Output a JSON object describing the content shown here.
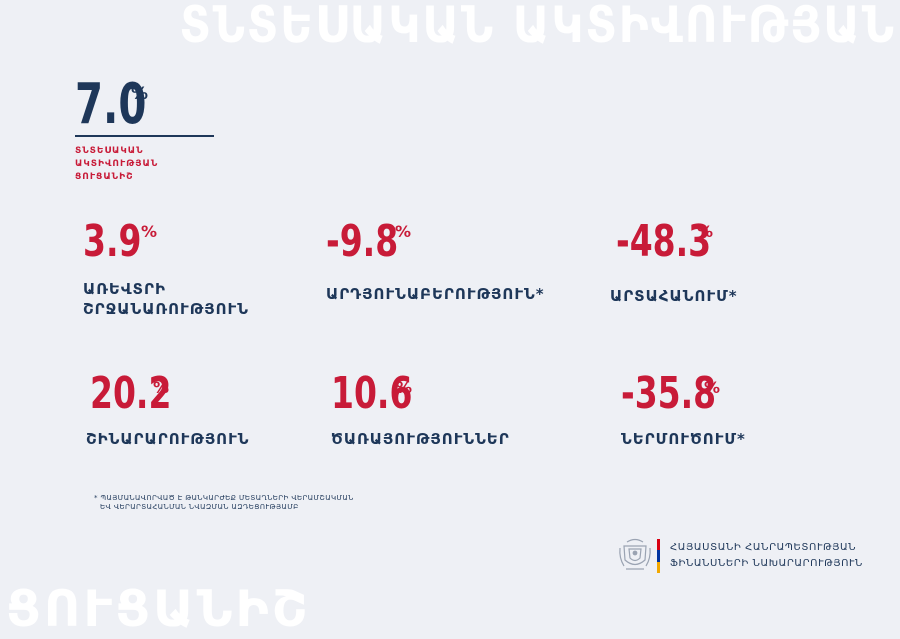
{
  "watermark_top": "ՏՆՏԵՍԱԿԱՆ ԱԿՏԻՎՈՒԹՅԱՆ",
  "watermark_bottom": "ՑՈՒՑԱՆԻՇ",
  "main": {
    "value": "7.0",
    "unit": "%",
    "label_line1": "ՏՆՏԵՍԱԿԱՆ ԱԿՏԻՎՈՒԹՅԱՆ",
    "label_line2": "ՑՈՒՑԱՆԻՇ"
  },
  "indicators": [
    {
      "value": "3.9",
      "unit": "%",
      "label_line1": "ԱՌԵՎՏՐԻ",
      "label_line2": "ՇՐՋԱՆԱՌՈՒԹՅՈՒՆ"
    },
    {
      "value": "-9.8",
      "unit": "%",
      "label_line1": "ԱՐԴՅՈՒՆԱԲԵՐՈՒԹՅՈՒՆ*",
      "label_line2": ""
    },
    {
      "value": "-48.3",
      "unit": "%",
      "label_line1": "ԱՐՏԱՀԱՆՈՒՄ*",
      "label_line2": ""
    },
    {
      "value": "20.2",
      "unit": "%",
      "label_line1": "ՇԻՆԱՐԱՐՈՒԹՅՈՒՆ",
      "label_line2": ""
    },
    {
      "value": "10.6",
      "unit": "%",
      "label_line1": "ԾԱՌԱՅՈՒԹՅՈՒՆՆԵՐ",
      "label_line2": ""
    },
    {
      "value": "-35.8",
      "unit": "%",
      "label_line1": "ՆԵՐՄՈՒԾՈՒՄ*",
      "label_line2": ""
    }
  ],
  "footnote": {
    "line1": "* ՊԱՅՄԱՆԱՎՈՐՎԱԾ Է ԹԱՆԿԱՐԺԵՔ ՄԵՏԱՂՆԵՐԻ ՎԵՐԱՄՇԱԿՄԱՆ",
    "line2": "ԵՎ ՎԵՐԱՐՏԱՀԱՆՄԱՆ ՆՎԱԶՄԱՆ ԱԶԴԵՑՈՒԹՅԱՄԲ"
  },
  "ministry": {
    "line1": "ՀԱՅԱՍՏԱՆԻ ՀԱՆՐԱՊԵՏՈՒԹՅԱՆ",
    "line2": "ՖԻՆԱՆՍՆԵՐԻ ՆԱԽԱՐԱՐՈՒԹՅՈՒՆ"
  },
  "colors": {
    "background": "#eef0f5",
    "navy": "#1e3759",
    "red": "#c81b38",
    "flag": [
      "#d90012",
      "#0033a0",
      "#f2a800"
    ]
  },
  "icons": {
    "emblem": "coat-of-arms-icon"
  }
}
